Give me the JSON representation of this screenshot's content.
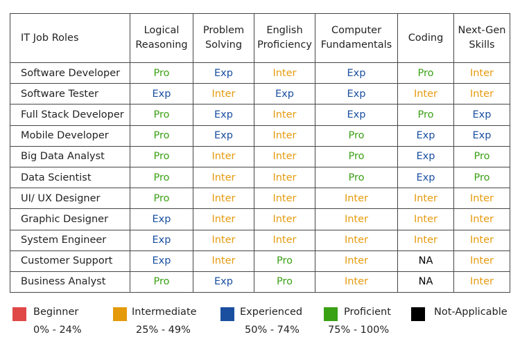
{
  "headers": [
    "IT Job Roles",
    "Logical\nReasoning",
    "Problem\nSolving",
    "English\nProficiency",
    "Computer\nFundamentals",
    "Coding",
    "Next-Gen\nSkills"
  ],
  "rows": [
    {
      "role": "Software Developer",
      "levels": [
        "Pro",
        "Exp",
        "Inter",
        "Exp",
        "Pro",
        "Inter"
      ]
    },
    {
      "role": "Software Tester",
      "levels": [
        "Exp",
        "Inter",
        "Exp",
        "Exp",
        "Inter",
        "Inter"
      ]
    },
    {
      "role": "Full Stack Developer",
      "levels": [
        "Pro",
        "Exp",
        "Inter",
        "Exp",
        "Pro",
        "Exp"
      ]
    },
    {
      "role": "Mobile Developer",
      "levels": [
        "Pro",
        "Exp",
        "Inter",
        "Pro",
        "Exp",
        "Exp"
      ]
    },
    {
      "role": "Big Data Analyst",
      "levels": [
        "Pro",
        "Inter",
        "Inter",
        "Pro",
        "Exp",
        "Pro"
      ]
    },
    {
      "role": "Data Scientist",
      "levels": [
        "Pro",
        "Inter",
        "Inter",
        "Pro",
        "Exp",
        "Pro"
      ]
    },
    {
      "role": "UI/ UX Designer",
      "levels": [
        "Pro",
        "Inter",
        "Inter",
        "Inter",
        "Inter",
        "Inter"
      ]
    },
    {
      "role": "Graphic Designer",
      "levels": [
        "Exp",
        "Inter",
        "Inter",
        "Inter",
        "Inter",
        "Inter"
      ]
    },
    {
      "role": "System Engineer",
      "levels": [
        "Exp",
        "Inter",
        "Inter",
        "Inter",
        "Inter",
        "Inter"
      ]
    },
    {
      "role": "Customer Support",
      "levels": [
        "Exp",
        "Inter",
        "Pro",
        "Inter",
        "NA",
        "Inter"
      ]
    },
    {
      "role": "Business Analyst",
      "levels": [
        "Pro",
        "Exp",
        "Pro",
        "Inter",
        "NA",
        "Inter"
      ]
    }
  ],
  "level_colors": {
    "Pro": "#3aa014",
    "Exp": "#1a4fa0",
    "Inter": "#e59a0c",
    "NA": "#000000"
  },
  "legend": [
    {
      "name": "Beginner",
      "range": "0% - 24%",
      "color": "#e04848"
    },
    {
      "name": "Intermediate",
      "range": "25% - 49%",
      "color": "#e59a0c"
    },
    {
      "name": "Experienced",
      "range": "50% - 74%",
      "color": "#1a4fa0"
    },
    {
      "name": "Proficient",
      "range": "75% - 100%",
      "color": "#3aa014"
    },
    {
      "name": "Not-Applicable",
      "range": "",
      "color": "#000000"
    }
  ]
}
